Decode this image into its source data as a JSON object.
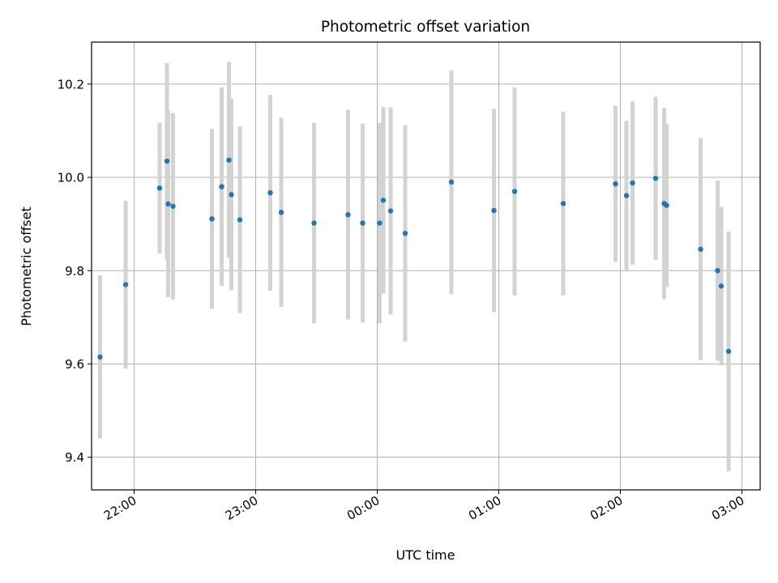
{
  "chart_data": {
    "type": "scatter",
    "title": "Photometric offset variation",
    "xlabel": "UTC time",
    "ylabel": "Photometric offset",
    "x_ticks": [
      "22:00",
      "23:00",
      "00:00",
      "01:00",
      "02:00",
      "03:00"
    ],
    "y_ticks": [
      "9.4",
      "9.6",
      "9.8",
      "10.0",
      "10.2"
    ],
    "x_unit": "hours since 21:00 UTC",
    "xlim": [
      0.65,
      6.15
    ],
    "ylim": [
      9.33,
      10.29
    ],
    "grid": true,
    "marker_color": "#1f77b4",
    "errorbar_color": "#d3d3d3",
    "points": [
      {
        "x": 0.72,
        "y": 9.615,
        "err": 0.175
      },
      {
        "x": 0.93,
        "y": 9.77,
        "err": 0.18
      },
      {
        "x": 1.21,
        "y": 9.977,
        "err": 0.14
      },
      {
        "x": 1.27,
        "y": 10.035,
        "err": 0.21
      },
      {
        "x": 1.28,
        "y": 9.943,
        "err": 0.2
      },
      {
        "x": 1.32,
        "y": 9.938,
        "err": 0.2
      },
      {
        "x": 1.64,
        "y": 9.911,
        "err": 0.193
      },
      {
        "x": 1.72,
        "y": 9.98,
        "err": 0.213
      },
      {
        "x": 1.78,
        "y": 10.037,
        "err": 0.21
      },
      {
        "x": 1.8,
        "y": 9.963,
        "err": 0.205
      },
      {
        "x": 1.87,
        "y": 9.909,
        "err": 0.2
      },
      {
        "x": 2.12,
        "y": 9.967,
        "err": 0.21
      },
      {
        "x": 2.21,
        "y": 9.925,
        "err": 0.203
      },
      {
        "x": 2.48,
        "y": 9.902,
        "err": 0.215
      },
      {
        "x": 2.76,
        "y": 9.92,
        "err": 0.225
      },
      {
        "x": 2.88,
        "y": 9.902,
        "err": 0.213
      },
      {
        "x": 3.02,
        "y": 9.902,
        "err": 0.215
      },
      {
        "x": 3.05,
        "y": 9.951,
        "err": 0.2
      },
      {
        "x": 3.11,
        "y": 9.928,
        "err": 0.222
      },
      {
        "x": 3.23,
        "y": 9.88,
        "err": 0.232
      },
      {
        "x": 3.61,
        "y": 9.99,
        "err": 0.24
      },
      {
        "x": 3.96,
        "y": 9.929,
        "err": 0.218
      },
      {
        "x": 4.13,
        "y": 9.97,
        "err": 0.223
      },
      {
        "x": 4.53,
        "y": 9.944,
        "err": 0.197
      },
      {
        "x": 4.96,
        "y": 9.986,
        "err": 0.167
      },
      {
        "x": 5.05,
        "y": 9.961,
        "err": 0.16
      },
      {
        "x": 5.1,
        "y": 9.988,
        "err": 0.175
      },
      {
        "x": 5.29,
        "y": 9.998,
        "err": 0.175
      },
      {
        "x": 5.36,
        "y": 9.944,
        "err": 0.205
      },
      {
        "x": 5.38,
        "y": 9.94,
        "err": 0.175
      },
      {
        "x": 5.66,
        "y": 9.846,
        "err": 0.238
      },
      {
        "x": 5.8,
        "y": 9.8,
        "err": 0.193
      },
      {
        "x": 5.83,
        "y": 9.767,
        "err": 0.17
      },
      {
        "x": 5.89,
        "y": 9.627,
        "err": 0.257
      }
    ]
  }
}
